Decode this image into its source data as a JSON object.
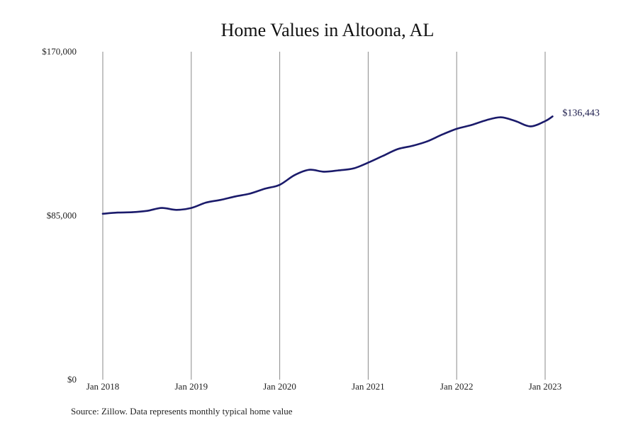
{
  "chart_data": {
    "type": "line",
    "title": "Home Values in Altoona, AL",
    "xlabel": "",
    "ylabel": "",
    "ylim": [
      0,
      170000
    ],
    "y_ticks": [
      0,
      85000,
      170000
    ],
    "y_tick_labels": [
      "$0",
      "$85,000",
      "$170,000"
    ],
    "x_ticks": [
      "2018-01",
      "2019-01",
      "2020-01",
      "2021-01",
      "2022-01",
      "2023-01"
    ],
    "x_tick_labels": [
      "Jan 2018",
      "Jan 2019",
      "Jan 2020",
      "Jan 2021",
      "Jan 2022",
      "Jan 2023"
    ],
    "grid": "vertical",
    "end_label": "$136,443",
    "series": [
      {
        "color": "#1b1b6b",
        "x": [
          "2018-01",
          "2018-03",
          "2018-05",
          "2018-07",
          "2018-09",
          "2018-11",
          "2019-01",
          "2019-03",
          "2019-05",
          "2019-07",
          "2019-09",
          "2019-11",
          "2020-01",
          "2020-03",
          "2020-05",
          "2020-07",
          "2020-09",
          "2020-11",
          "2021-01",
          "2021-03",
          "2021-05",
          "2021-07",
          "2021-09",
          "2021-11",
          "2022-01",
          "2022-03",
          "2022-05",
          "2022-07",
          "2022-09",
          "2022-11",
          "2023-01",
          "2023-02"
        ],
        "values": [
          86000,
          86600,
          86800,
          87500,
          89000,
          88000,
          89000,
          91800,
          93200,
          95000,
          96500,
          99000,
          101000,
          106000,
          108800,
          107800,
          108500,
          109500,
          112500,
          116000,
          119500,
          121200,
          123500,
          127000,
          130000,
          132000,
          134500,
          136000,
          134000,
          131300,
          134000,
          136443
        ]
      }
    ]
  },
  "footer": {
    "source": "Source: Zillow. Data represents monthly typical home value"
  }
}
